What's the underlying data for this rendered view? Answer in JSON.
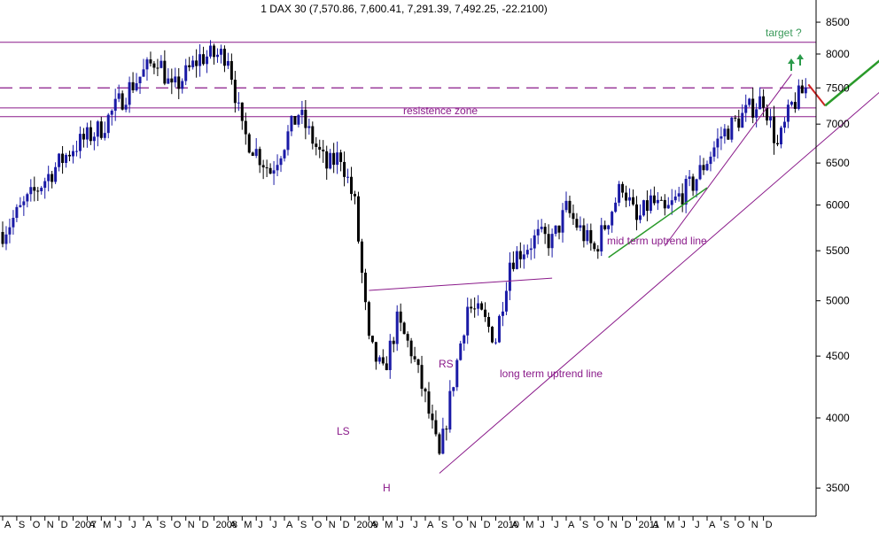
{
  "title": "1 DAX 30 (7,570.86, 7,600.41, 7,291.39, 7,492.25, -22.2100)",
  "colors": {
    "candle_up": "#1a1aa6",
    "candle_down": "#000000",
    "magenta": "#8a1a8a",
    "green_line": "#2a9a2a",
    "target_text": "#3a9a5a",
    "target_arrows": "#2a9a4a",
    "red_segment": "#cc2222"
  },
  "chart_data": {
    "type": "candlestick",
    "title": "1 DAX 30 (7,570.86, 7,600.41, 7,291.39, 7,492.25, -22.2100)",
    "y_axis": {
      "position": "right",
      "scale": "log",
      "ticks": [
        3500,
        4000,
        4500,
        5000,
        5500,
        6000,
        6500,
        7000,
        7500,
        8000,
        8500
      ],
      "tick_labels": [
        "3500",
        "4000",
        "4500",
        "5000",
        "5500",
        "6000",
        "6500",
        "7000",
        "7500",
        "8000",
        "8500"
      ]
    },
    "x_axis": {
      "ticks": [
        "A",
        "S",
        "O",
        "N",
        "D",
        "2007",
        "A",
        "M",
        "J",
        "J",
        "A",
        "S",
        "O",
        "N",
        "D",
        "2008",
        "A",
        "M",
        "J",
        "J",
        "A",
        "S",
        "O",
        "N",
        "D",
        "2009",
        "A",
        "M",
        "J",
        "J",
        "A",
        "S",
        "O",
        "N",
        "D",
        "2010",
        "A",
        "M",
        "J",
        "J",
        "A",
        "S",
        "O",
        "N",
        "D",
        "2011",
        "A",
        "M",
        "J",
        "J",
        "A",
        "S",
        "O",
        "N",
        "D"
      ]
    },
    "horizontal_lines": [
      {
        "value": 8180,
        "style": "solid"
      },
      {
        "value": 7500,
        "style": "dashed"
      },
      {
        "value": 7220,
        "style": "solid"
      },
      {
        "value": 7100,
        "style": "solid"
      }
    ],
    "price_path": [
      [
        "2006-08",
        5700
      ],
      [
        "2006-11",
        6300
      ],
      [
        "2007-01",
        6700
      ],
      [
        "2007-03",
        6950
      ],
      [
        "2007-05",
        7500
      ],
      [
        "2007-07",
        7950
      ],
      [
        "2007-08",
        7450
      ],
      [
        "2007-10",
        7950
      ],
      [
        "2007-12",
        8000
      ],
      [
        "2008-01",
        6900
      ],
      [
        "2008-03",
        6400
      ],
      [
        "2008-05",
        7150
      ],
      [
        "2008-07",
        6450
      ],
      [
        "2008-08",
        6600
      ],
      [
        "2008-09",
        6000
      ],
      [
        "2008-10",
        4600
      ],
      [
        "2008-11",
        4350
      ],
      [
        "2008-12",
        4800
      ],
      [
        "2009-01",
        4550
      ],
      [
        "2009-02",
        4150
      ],
      [
        "2009-03",
        3700
      ],
      [
        "2009-04",
        4300
      ],
      [
        "2009-05",
        4950
      ],
      [
        "2009-06",
        4850
      ],
      [
        "2009-07",
        4650
      ],
      [
        "2009-08",
        5400
      ],
      [
        "2009-10",
        5650
      ],
      [
        "2009-11",
        5600
      ],
      [
        "2009-12",
        5950
      ],
      [
        "2010-02",
        5500
      ],
      [
        "2010-04",
        6250
      ],
      [
        "2010-05",
        5800
      ],
      [
        "2010-06",
        6050
      ],
      [
        "2010-07",
        5900
      ],
      [
        "2010-08",
        6100
      ],
      [
        "2010-09",
        6250
      ],
      [
        "2010-11",
        6850
      ],
      [
        "2011-01",
        7200
      ],
      [
        "2011-02",
        7350
      ],
      [
        "2011-03",
        6700
      ],
      [
        "2011-04",
        7250
      ],
      [
        "2011-05",
        7492
      ]
    ],
    "trendlines": [
      {
        "name": "long term uptrend line",
        "from": [
          "2009-03",
          3600
        ],
        "to": [
          "2011-12",
          7750
        ]
      },
      {
        "name": "mid term uptrend line",
        "from": [
          "2010-07",
          5550
        ],
        "to": [
          "2011-04",
          7700
        ]
      },
      {
        "from": [
          "2010-03",
          5430
        ],
        "to": [
          "2010-10",
          6200
        ],
        "color": "green"
      },
      {
        "from": [
          "2008-10",
          5100
        ],
        "to": [
          "2009-11",
          5220
        ]
      }
    ],
    "projection": [
      [
        "2011-05",
        7550
      ],
      [
        "2011-06",
        7250
      ],
      [
        "2011-12",
        8100
      ]
    ],
    "annotations": [
      "resistence zone",
      "LS",
      "H",
      "RS",
      "long term uptrend line",
      "mid term uptrend line",
      "target ?"
    ]
  },
  "annotations": {
    "resistence_zone": "resistence zone",
    "ls": "LS",
    "h": "H",
    "rs": "RS",
    "long_term": "long term uptrend line",
    "mid_term": "mid term uptrend line",
    "target": "target ?"
  }
}
